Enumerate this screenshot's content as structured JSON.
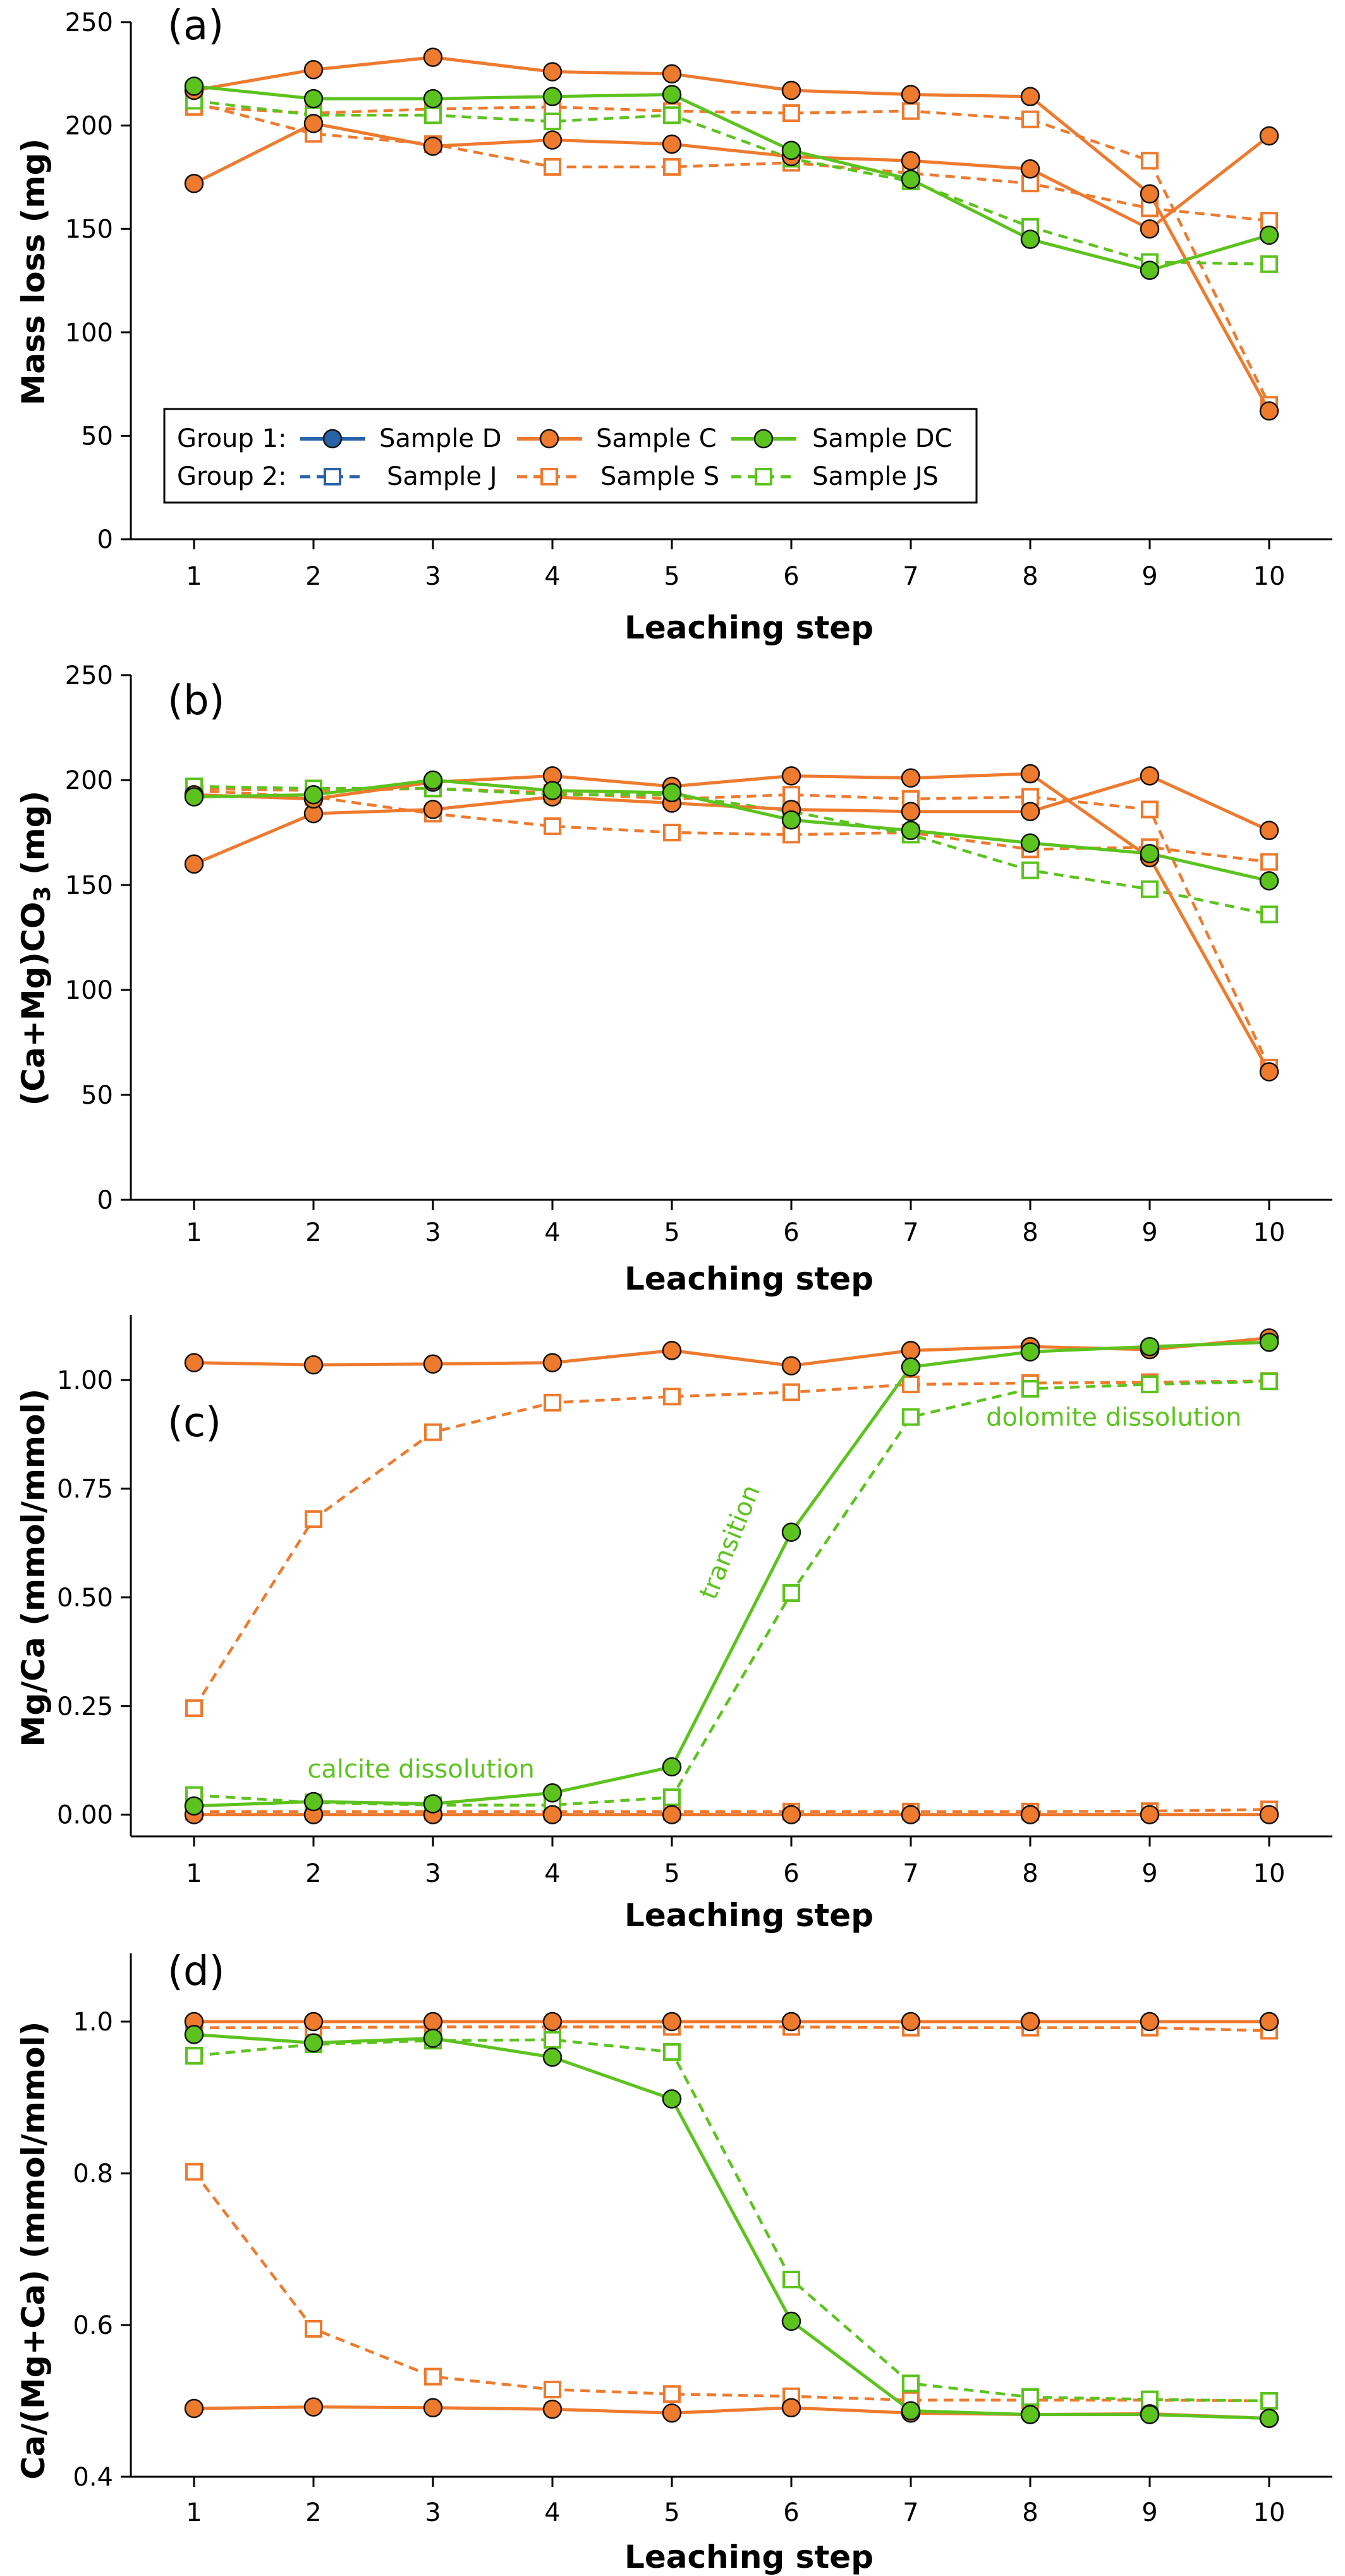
{
  "colors": {
    "sample_D": "#2a62a8",
    "sample_C": "#ee7a2e",
    "sample_DC": "#5cc31e",
    "axis": "#000000"
  },
  "legend": {
    "group1_label": "Group 1:",
    "group2_label": "Group 2:"
  },
  "chart_data": [
    {
      "type": "line",
      "panel": "(a)",
      "xlabel": "Leaching step",
      "ylabel": "Mass loss (mg)",
      "x": [
        1,
        2,
        3,
        4,
        5,
        6,
        7,
        8,
        9,
        10
      ],
      "xlim": [
        0.5,
        10.5
      ],
      "ylim": [
        0,
        250
      ],
      "yticks": [
        0,
        50,
        100,
        150,
        200,
        250
      ],
      "ytick_labels": [
        "0",
        "50",
        "100",
        "150",
        "200",
        "250"
      ],
      "legend_position": "lower-left",
      "series": [
        {
          "name": "Sample D",
          "group": 1,
          "values": [
            172,
            201,
            190,
            193,
            191,
            185,
            183,
            179,
            150,
            195
          ]
        },
        {
          "name": "Sample C",
          "group": 1,
          "values": [
            217,
            227,
            233,
            226,
            225,
            217,
            215,
            214,
            167,
            62
          ]
        },
        {
          "name": "Sample DC",
          "group": 1,
          "values": [
            219,
            213,
            213,
            214,
            215,
            188,
            174,
            145,
            130,
            147
          ]
        },
        {
          "name": "Sample J",
          "group": 2,
          "values": [
            211,
            196,
            191,
            180,
            180,
            182,
            177,
            172,
            160,
            154
          ]
        },
        {
          "name": "Sample S",
          "group": 2,
          "values": [
            209,
            206,
            208,
            209,
            207,
            206,
            207,
            203,
            183,
            65
          ]
        },
        {
          "name": "Sample JS",
          "group": 2,
          "values": [
            212,
            205,
            205,
            202,
            205,
            184,
            173,
            151,
            134,
            133
          ]
        }
      ]
    },
    {
      "type": "line",
      "panel": "(b)",
      "xlabel": "Leaching step",
      "ylabel_parts": [
        "(Ca+Mg)CO",
        "3",
        " (mg)"
      ],
      "x": [
        1,
        2,
        3,
        4,
        5,
        6,
        7,
        8,
        9,
        10
      ],
      "xlim": [
        0.5,
        10.5
      ],
      "ylim": [
        0,
        250
      ],
      "yticks": [
        0,
        50,
        100,
        150,
        200,
        250
      ],
      "ytick_labels": [
        "0",
        "50",
        "100",
        "150",
        "200",
        "250"
      ],
      "series": [
        {
          "name": "Sample D",
          "group": 1,
          "values": [
            160,
            184,
            186,
            192,
            189,
            186,
            185,
            185,
            202,
            176
          ]
        },
        {
          "name": "Sample C",
          "group": 1,
          "values": [
            193,
            191,
            199,
            202,
            197,
            202,
            201,
            203,
            163,
            61
          ]
        },
        {
          "name": "Sample DC",
          "group": 1,
          "values": [
            192,
            193,
            200,
            195,
            194,
            181,
            176,
            170,
            165,
            152
          ]
        },
        {
          "name": "Sample J",
          "group": 2,
          "values": [
            195,
            192,
            184,
            178,
            175,
            174,
            175,
            167,
            168,
            161
          ]
        },
        {
          "name": "Sample S",
          "group": 2,
          "values": [
            196,
            195,
            196,
            194,
            191,
            193,
            191,
            192,
            186,
            63
          ]
        },
        {
          "name": "Sample JS",
          "group": 2,
          "values": [
            197,
            196,
            196,
            193,
            193,
            185,
            174,
            157,
            148,
            136
          ]
        }
      ]
    },
    {
      "type": "line",
      "panel": "(c)",
      "xlabel": "Leaching step",
      "ylabel": "Mg/Ca (mmol/mmol)",
      "x": [
        1,
        2,
        3,
        4,
        5,
        6,
        7,
        8,
        9,
        10
      ],
      "xlim": [
        0.5,
        10.5
      ],
      "ylim": [
        -0.05,
        1.15
      ],
      "yticks": [
        0,
        0.25,
        0.5,
        0.75,
        1.0
      ],
      "ytick_labels": [
        "0.00",
        "0.25",
        "0.50",
        "0.75",
        "1.00"
      ],
      "annotations": [
        {
          "text": "calcite dissolution",
          "x": 2.9,
          "y": 0.085
        },
        {
          "text": "transition",
          "x": 5.55,
          "y": 0.62
        },
        {
          "text": "dolomite dissolution",
          "x": 8.7,
          "y": 0.895
        }
      ],
      "series": [
        {
          "name": "Sample D",
          "group": 1,
          "values": [
            1.04,
            1.035,
            1.037,
            1.04,
            1.068,
            1.033,
            1.068,
            1.077,
            1.07,
            1.097
          ]
        },
        {
          "name": "Sample C",
          "group": 1,
          "values": [
            0.0,
            0.0,
            0.0,
            0.0,
            0.0,
            0.0,
            0.0,
            0.0,
            0.0,
            0.0
          ]
        },
        {
          "name": "Sample DC",
          "group": 1,
          "values": [
            0.02,
            0.03,
            0.025,
            0.05,
            0.11,
            0.65,
            1.03,
            1.065,
            1.077,
            1.087
          ]
        },
        {
          "name": "Sample J",
          "group": 2,
          "values": [
            0.245,
            0.68,
            0.88,
            0.948,
            0.962,
            0.972,
            0.99,
            0.993,
            0.995,
            0.998
          ]
        },
        {
          "name": "Sample S",
          "group": 2,
          "values": [
            0.007,
            0.007,
            0.007,
            0.007,
            0.007,
            0.007,
            0.007,
            0.007,
            0.008,
            0.012
          ]
        },
        {
          "name": "Sample JS",
          "group": 2,
          "values": [
            0.045,
            0.028,
            0.022,
            0.022,
            0.04,
            0.51,
            0.915,
            0.98,
            0.99,
            0.997
          ]
        }
      ]
    },
    {
      "type": "line",
      "panel": "(d)",
      "xlabel": "Leaching step",
      "ylabel": "Ca/(Mg+Ca) (mmol/mmol)",
      "x": [
        1,
        2,
        3,
        4,
        5,
        6,
        7,
        8,
        9,
        10
      ],
      "xlim": [
        0.5,
        10.5
      ],
      "ylim": [
        0.4,
        1.09
      ],
      "yticks": [
        0.4,
        0.6,
        0.8,
        1.0
      ],
      "ytick_labels": [
        "0.4",
        "0.6",
        "0.8",
        "1.0"
      ],
      "series": [
        {
          "name": "Sample D",
          "group": 1,
          "values": [
            0.49,
            0.492,
            0.491,
            0.489,
            0.484,
            0.491,
            0.484,
            0.482,
            0.483,
            0.477
          ]
        },
        {
          "name": "Sample C",
          "group": 1,
          "values": [
            1.0,
            1.0,
            1.0,
            1.0,
            1.0,
            1.0,
            1.0,
            1.0,
            1.0,
            1.0
          ]
        },
        {
          "name": "Sample DC",
          "group": 1,
          "values": [
            0.983,
            0.972,
            0.978,
            0.953,
            0.898,
            0.605,
            0.487,
            0.482,
            0.482,
            0.477
          ]
        },
        {
          "name": "Sample J",
          "group": 2,
          "values": [
            0.802,
            0.595,
            0.532,
            0.515,
            0.509,
            0.506,
            0.501,
            0.501,
            0.501,
            0.5
          ]
        },
        {
          "name": "Sample S",
          "group": 2,
          "values": [
            0.992,
            0.992,
            0.993,
            0.993,
            0.993,
            0.993,
            0.992,
            0.992,
            0.992,
            0.988
          ]
        },
        {
          "name": "Sample JS",
          "group": 2,
          "values": [
            0.955,
            0.97,
            0.975,
            0.976,
            0.96,
            0.66,
            0.523,
            0.505,
            0.502,
            0.5
          ]
        }
      ]
    }
  ]
}
